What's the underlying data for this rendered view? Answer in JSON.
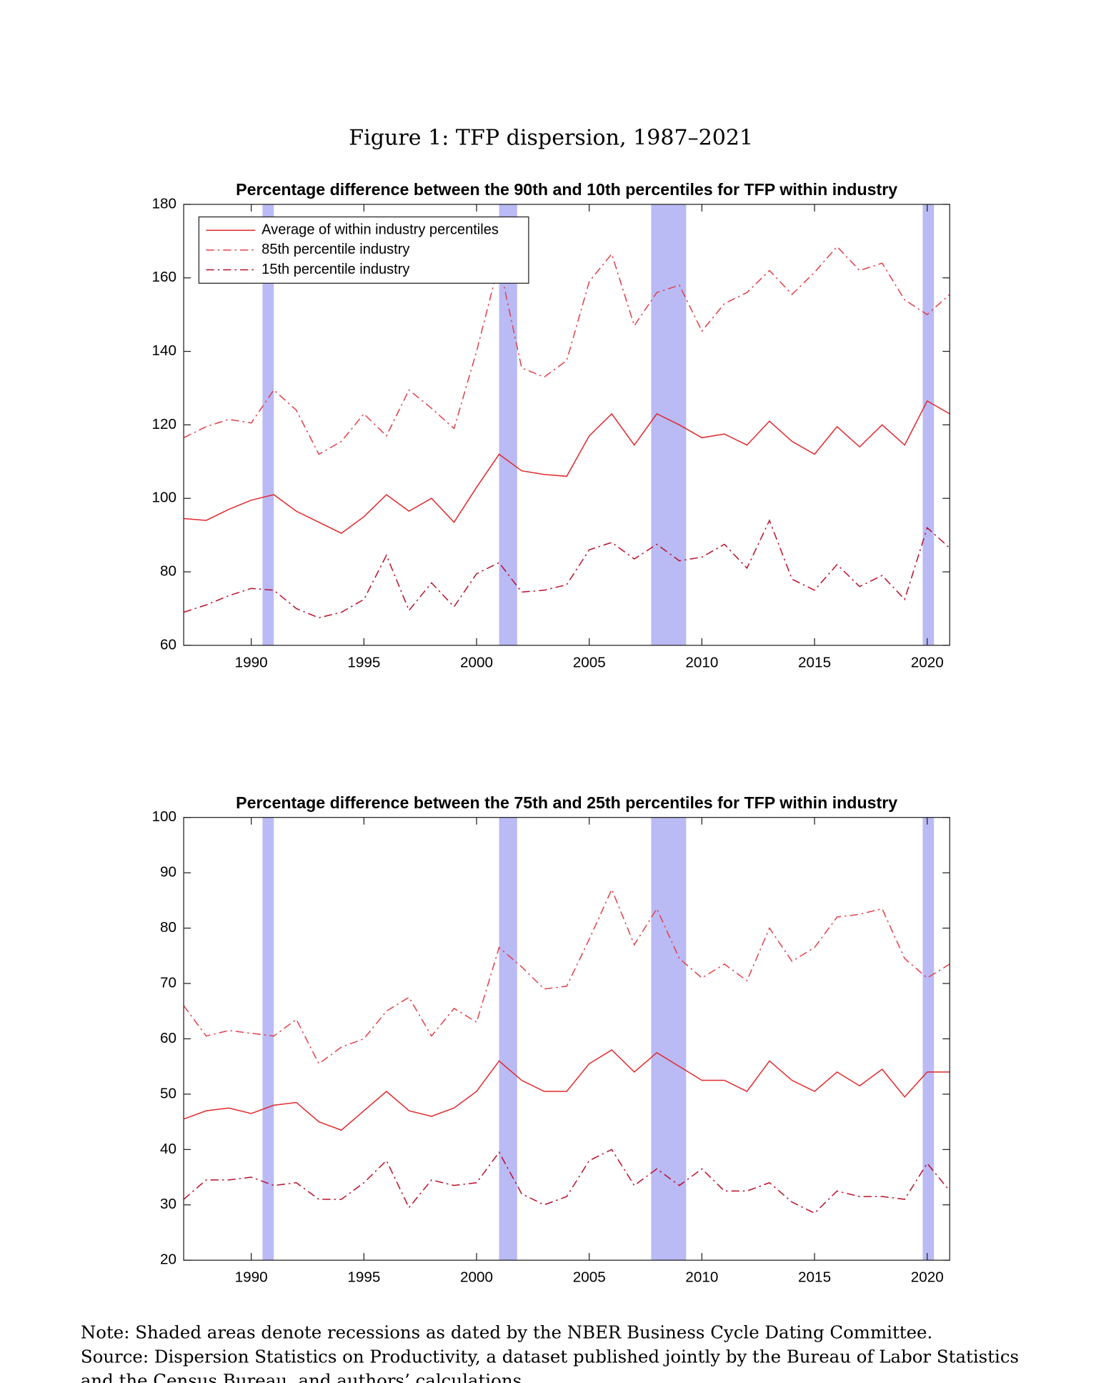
{
  "figure_title": "Figure 1:  TFP dispersion, 1987–2021",
  "chart_data": [
    {
      "type": "line",
      "title": "Percentage difference between the 90th and 10th percentiles for TFP within industry",
      "x": [
        1987,
        1988,
        1989,
        1990,
        1991,
        1992,
        1993,
        1994,
        1995,
        1996,
        1997,
        1998,
        1999,
        2000,
        2001,
        2002,
        2003,
        2004,
        2005,
        2006,
        2007,
        2008,
        2009,
        2010,
        2011,
        2012,
        2013,
        2014,
        2015,
        2016,
        2017,
        2018,
        2019,
        2020,
        2021
      ],
      "xlim": [
        1987,
        2021
      ],
      "xticks": [
        1990,
        1995,
        2000,
        2005,
        2010,
        2015,
        2020
      ],
      "ylim": [
        60,
        180
      ],
      "yticks": [
        60,
        80,
        100,
        120,
        140,
        160,
        180
      ],
      "legend": "upper left",
      "recessions": [
        [
          1990.5,
          1991.0
        ],
        [
          2001.0,
          2001.8
        ],
        [
          2007.75,
          2009.3
        ],
        [
          2019.8,
          2020.3
        ]
      ],
      "recession_color": "#babaf5",
      "series": [
        {
          "name": "Average of within industry percentiles",
          "color": "#e0282c",
          "style": "solid",
          "values": [
            94.5,
            94,
            97,
            99.5,
            101,
            96.5,
            93.5,
            90.5,
            95,
            101,
            96.5,
            100,
            93.5,
            103,
            112,
            107.5,
            106.5,
            106,
            117,
            123,
            114.5,
            123,
            120,
            116.5,
            117.5,
            114.5,
            121,
            115.5,
            112,
            119.5,
            114,
            120,
            114.5,
            126.5,
            123
          ]
        },
        {
          "name": "85th percentile industry",
          "color": "#e0404a",
          "style": "dashdot",
          "values": [
            116.5,
            119.5,
            121.5,
            120.5,
            129.5,
            124,
            112,
            115.5,
            123,
            117,
            129.5,
            124.5,
            119,
            140,
            164,
            135.5,
            133,
            137.5,
            159,
            166.5,
            147,
            156,
            158,
            145.5,
            153,
            156,
            162,
            155.5,
            161.5,
            168.5,
            162,
            164,
            154,
            150,
            155.5
          ]
        },
        {
          "name": "15th percentile industry",
          "color": "#b8102a",
          "style": "dashdot",
          "values": [
            69,
            71,
            73.5,
            75.5,
            75,
            70,
            67.5,
            69,
            72.5,
            84.5,
            69.5,
            77,
            70.5,
            79.5,
            82.5,
            74.5,
            75,
            76.5,
            86,
            88,
            83.5,
            87.5,
            83,
            84,
            87.5,
            81,
            94,
            78,
            75,
            82,
            76,
            79,
            72.5,
            92,
            86.5
          ]
        }
      ]
    },
    {
      "type": "line",
      "title": "Percentage difference between the 75th and 25th percentiles for TFP within industry",
      "x": [
        1987,
        1988,
        1989,
        1990,
        1991,
        1992,
        1993,
        1994,
        1995,
        1996,
        1997,
        1998,
        1999,
        2000,
        2001,
        2002,
        2003,
        2004,
        2005,
        2006,
        2007,
        2008,
        2009,
        2010,
        2011,
        2012,
        2013,
        2014,
        2015,
        2016,
        2017,
        2018,
        2019,
        2020,
        2021
      ],
      "xlim": [
        1987,
        2021
      ],
      "xticks": [
        1990,
        1995,
        2000,
        2005,
        2010,
        2015,
        2020
      ],
      "ylim": [
        20,
        100
      ],
      "yticks": [
        20,
        30,
        40,
        50,
        60,
        70,
        80,
        90,
        100
      ],
      "recessions": [
        [
          1990.5,
          1991.0
        ],
        [
          2001.0,
          2001.8
        ],
        [
          2007.75,
          2009.3
        ],
        [
          2019.8,
          2020.3
        ]
      ],
      "recession_color": "#babaf5",
      "series": [
        {
          "color": "#e0282c",
          "style": "solid",
          "values": [
            45.5,
            47,
            47.5,
            46.5,
            48,
            48.5,
            45,
            43.5,
            47,
            50.5,
            47,
            46,
            47.5,
            50.5,
            56,
            52.5,
            50.5,
            50.5,
            55.5,
            58,
            54,
            57.5,
            55,
            52.5,
            52.5,
            50.5,
            56,
            52.5,
            50.5,
            54,
            51.5,
            54.5,
            49.5,
            54,
            54
          ]
        },
        {
          "color": "#e0404a",
          "style": "dashdot",
          "values": [
            66,
            60.5,
            61.5,
            61,
            60.5,
            63.5,
            55.5,
            58.5,
            60,
            65,
            67.5,
            60.5,
            65.5,
            63,
            76.5,
            73,
            69,
            69.5,
            78,
            87,
            77,
            83.5,
            74.5,
            71,
            73.5,
            70.5,
            80,
            74,
            76.5,
            82,
            82.5,
            83.5,
            74.5,
            71,
            73.5
          ]
        },
        {
          "color": "#b8102a",
          "style": "dashdot",
          "values": [
            31,
            34.5,
            34.5,
            35,
            33.5,
            34,
            31,
            31,
            34,
            38,
            29.5,
            34.5,
            33.5,
            34,
            39.5,
            32,
            30,
            31.5,
            38,
            40,
            33.5,
            36.5,
            33.5,
            36.5,
            32.5,
            32.5,
            34,
            30.5,
            28.5,
            32.5,
            31.5,
            31.5,
            31,
            37.5,
            32.5
          ]
        }
      ]
    }
  ],
  "note": [
    "Note: Shaded areas denote recessions as dated by the NBER Business Cycle Dating Committee.",
    "Source: Dispersion Statistics on Productivity, a dataset published jointly by the Bureau of Labor Statistics",
    "and the Census Bureau, and authors’ calculations."
  ]
}
